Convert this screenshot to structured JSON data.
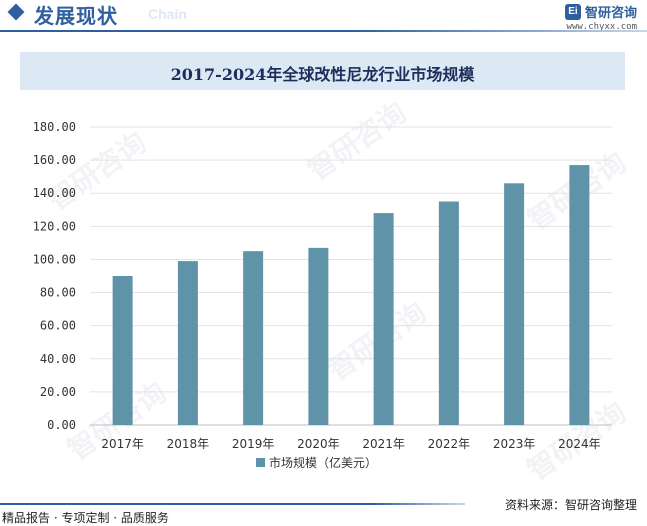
{
  "header": {
    "title": "发展现状",
    "subtitle": "Chain",
    "brand_logo": "Ei",
    "brand_name": "智研咨询",
    "brand_url": "www.chyxx.com"
  },
  "watermarks": [
    "智研咨询",
    "智研咨询",
    "智研咨询",
    "智研咨询",
    "智研咨询",
    "智研咨询"
  ],
  "chart_data": {
    "type": "bar",
    "title": "2017-2024年全球改性尼龙行业市场规模",
    "categories": [
      "2017年",
      "2018年",
      "2019年",
      "2020年",
      "2021年",
      "2022年",
      "2023年",
      "2024年"
    ],
    "series": [
      {
        "name": "市场规模（亿美元）",
        "values": [
          90,
          99,
          105,
          107,
          128,
          135,
          146,
          157
        ]
      }
    ],
    "ylim": [
      0,
      180
    ],
    "yticks": [
      0,
      20,
      40,
      60,
      80,
      100,
      120,
      140,
      160,
      180
    ],
    "ytick_labels": [
      "0.00",
      "20.00",
      "40.00",
      "60.00",
      "80.00",
      "100.00",
      "120.00",
      "140.00",
      "160.00",
      "180.00"
    ],
    "xlabel": "",
    "ylabel": "",
    "grid": true,
    "legend": "bottom",
    "bar_color": "#5f93a8"
  },
  "footer": {
    "left": "精品报告 · 专项定制 · 品质服务",
    "right": "资料来源：智研咨询整理"
  }
}
